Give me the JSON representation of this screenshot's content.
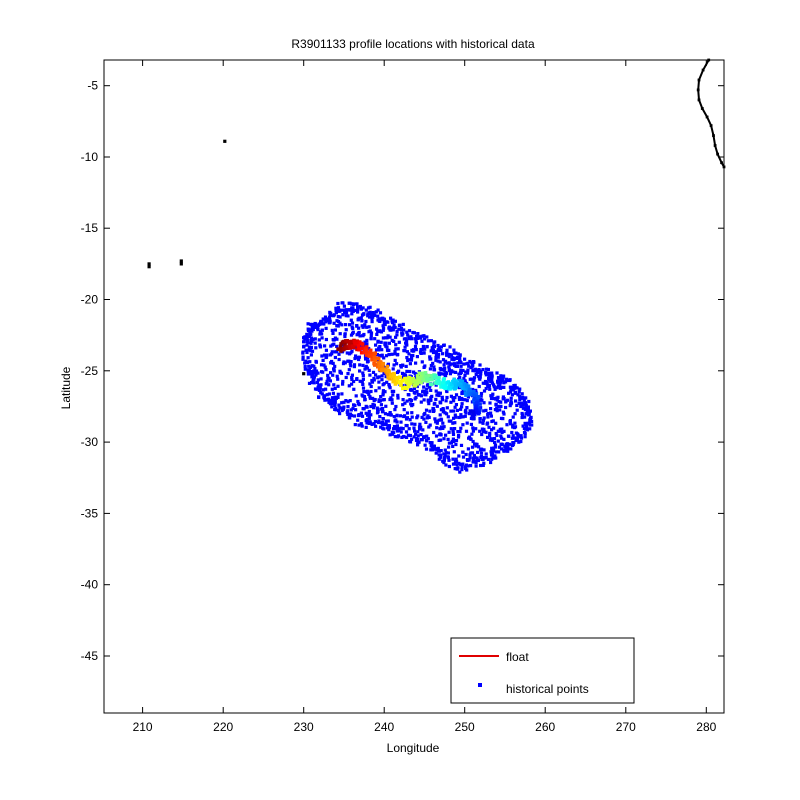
{
  "chart_data": {
    "type": "scatter",
    "title": "R3901133 profile locations with historical data",
    "xlabel": "Longitude",
    "ylabel": "Latitude",
    "xlim": [
      205.2,
      282.2
    ],
    "ylim": [
      -49.0,
      -3.2
    ],
    "xticks": [
      210,
      220,
      230,
      240,
      250,
      260,
      270,
      280
    ],
    "yticks": [
      -5,
      -10,
      -15,
      -20,
      -25,
      -30,
      -35,
      -40,
      -45
    ],
    "grid": false,
    "legend_position": "bottom-right",
    "colors": {
      "float_line": "#e00000",
      "historical": "#0000ff",
      "coast": "#000000"
    },
    "legend": [
      {
        "label": "float",
        "marker": "line",
        "color": "#e00000"
      },
      {
        "label": "historical points",
        "marker": "dot",
        "color": "#0000ff"
      }
    ],
    "historical_outline": [
      [
        231.0,
        -22.0
      ],
      [
        232.5,
        -21.5
      ],
      [
        234.5,
        -20.5
      ],
      [
        236.5,
        -20.6
      ],
      [
        238.5,
        -21.0
      ],
      [
        240.5,
        -21.6
      ],
      [
        242.5,
        -22.2
      ],
      [
        245.0,
        -23.0
      ],
      [
        248.0,
        -23.6
      ],
      [
        250.5,
        -24.5
      ],
      [
        252.5,
        -25.2
      ],
      [
        254.5,
        -25.5
      ],
      [
        256.5,
        -26.5
      ],
      [
        258.0,
        -27.5
      ],
      [
        257.8,
        -29.0
      ],
      [
        255.5,
        -30.5
      ],
      [
        252.5,
        -31.2
      ],
      [
        249.5,
        -31.8
      ],
      [
        247.0,
        -31.0
      ],
      [
        245.0,
        -30.0
      ],
      [
        242.0,
        -29.4
      ],
      [
        239.5,
        -28.8
      ],
      [
        237.0,
        -28.5
      ],
      [
        234.0,
        -27.5
      ],
      [
        232.0,
        -26.5
      ],
      [
        230.5,
        -25.0
      ],
      [
        230.2,
        -23.0
      ]
    ],
    "historical_isolated": [
      [
        220.2,
        -8.9
      ],
      [
        210.8,
        -17.5
      ],
      [
        210.8,
        -17.7
      ],
      [
        214.8,
        -17.3
      ],
      [
        214.8,
        -17.5
      ],
      [
        230.0,
        -25.2
      ]
    ],
    "float_track": [
      [
        234.5,
        -23.3
      ],
      [
        235.3,
        -23.2
      ],
      [
        236.1,
        -23.2
      ],
      [
        236.9,
        -23.3
      ],
      [
        237.7,
        -23.6
      ],
      [
        238.5,
        -24.0
      ],
      [
        239.3,
        -24.4
      ],
      [
        240.1,
        -24.9
      ],
      [
        240.9,
        -25.4
      ],
      [
        241.7,
        -25.7
      ],
      [
        242.5,
        -25.9
      ],
      [
        243.3,
        -25.8
      ],
      [
        244.1,
        -25.6
      ],
      [
        244.9,
        -25.4
      ],
      [
        245.7,
        -25.5
      ],
      [
        246.5,
        -25.7
      ],
      [
        247.3,
        -25.9
      ],
      [
        248.1,
        -26.0
      ],
      [
        248.9,
        -25.9
      ],
      [
        249.7,
        -26.0
      ],
      [
        250.5,
        -26.4
      ],
      [
        251.3,
        -26.9
      ],
      [
        251.7,
        -27.4
      ],
      [
        251.4,
        -27.9
      ],
      [
        250.8,
        -28.1
      ]
    ],
    "coastline": [
      [
        280.3,
        -3.2
      ],
      [
        279.6,
        -3.9
      ],
      [
        279.1,
        -4.6
      ],
      [
        279.0,
        -5.3
      ],
      [
        279.1,
        -6.0
      ],
      [
        279.5,
        -6.6
      ],
      [
        280.1,
        -7.2
      ],
      [
        280.6,
        -7.8
      ],
      [
        280.9,
        -8.5
      ],
      [
        281.1,
        -9.2
      ],
      [
        281.4,
        -9.8
      ],
      [
        281.9,
        -10.4
      ],
      [
        282.2,
        -10.7
      ]
    ]
  }
}
